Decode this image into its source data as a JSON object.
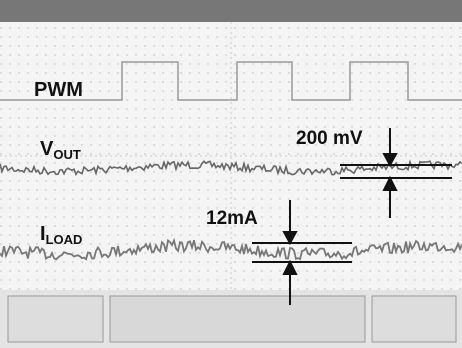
{
  "labels": {
    "pwm": "PWM",
    "vout": {
      "main": "V",
      "sub": "OUT"
    },
    "iload": {
      "main": "I",
      "sub": "LOAD"
    }
  },
  "annotations": {
    "vout_ripple": "200 mV",
    "iload_ripple": "12mA"
  }
}
